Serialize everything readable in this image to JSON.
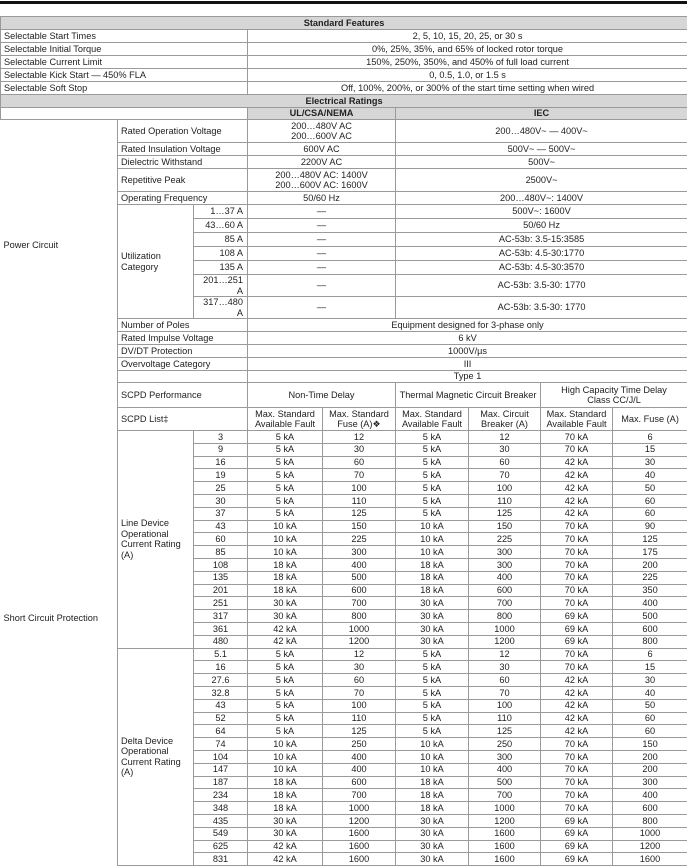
{
  "standard_features": {
    "title": "Standard Features",
    "rows": [
      [
        "Selectable Start Times",
        "2, 5, 10, 15, 20, 25, or 30 s"
      ],
      [
        "Selectable Initial Torque",
        "0%, 25%, 35%, and 65% of locked rotor torque"
      ],
      [
        "Selectable Current Limit",
        "150%, 250%, 350%, and 450% of full load current"
      ],
      [
        "Selectable Kick Start — 450% FLA",
        "0, 0.5, 1.0, or 1.5 s"
      ],
      [
        "Selectable Soft Stop",
        "Off, 100%, 200%, or 300% of the start time setting when wired"
      ]
    ]
  },
  "electrical_ratings": {
    "title": "Electrical Ratings",
    "headers": [
      "UL/CSA/NEMA",
      "IEC"
    ],
    "group": "Power Circuit",
    "rows_before": [
      {
        "label": "Rated Operation Voltage",
        "ul": "200…480V AC\n200…600V AC",
        "iec": "200…480V~ — 400V~"
      },
      {
        "label": "Rated Insulation Voltage",
        "ul": "600V AC",
        "iec": "500V~ — 500V~"
      },
      {
        "label": "Dielectric Withstand",
        "ul": "2200V AC",
        "iec": "500V~"
      },
      {
        "label": "Repetitive Peak",
        "ul": "200…480V AC: 1400V\n200…600V AC: 1600V",
        "iec": "2500V~"
      },
      {
        "label": "Operating Frequency",
        "ul": "50/60 Hz",
        "iec": "200…480V~: 1400V"
      }
    ],
    "utilization": {
      "label": "Utilization Category",
      "rows": [
        {
          "range": "1…37 A",
          "ul": "—",
          "iec": "500V~: 1600V"
        },
        {
          "range": "43…60 A",
          "ul": "—",
          "iec": "50/60 Hz"
        },
        {
          "range": "85 A",
          "ul": "—",
          "iec": "AC-53b: 3.5-15:3585"
        },
        {
          "range": "108 A",
          "ul": "—",
          "iec": "AC-53b: 4.5-30:1770"
        },
        {
          "range": "135 A",
          "ul": "—",
          "iec": "AC-53b: 4.5-30:3570"
        },
        {
          "range": "201…251 A",
          "ul": "—",
          "iec": "AC-53b: 3.5-30: 1770"
        },
        {
          "range": "317…480 A",
          "ul": "—",
          "iec": "AC-53b: 3.5-30: 1770"
        }
      ]
    },
    "rows_after": [
      {
        "label": "Number of Poles",
        "value": "Equipment designed for 3-phase only"
      },
      {
        "label": "Rated Impulse Voltage",
        "value": "6 kV"
      },
      {
        "label": "DV/DT Protection",
        "value": "1000V/µs"
      },
      {
        "label": "Overvoltage Category",
        "value": "III"
      }
    ]
  },
  "short_circuit": {
    "group": "Short Circuit Protection",
    "type": "Type 1",
    "performance_label": "SCPD Performance",
    "performance_groups": [
      "Non-Time Delay",
      "Thermal Magnetic Circuit Breaker",
      "High Capacity Time Delay\nClass CC/J/L"
    ],
    "list_label": "SCPD List‡",
    "columns": [
      "Max. Standard\nAvailable Fault",
      "Max. Standard\nFuse (A)❖",
      "Max. Standard\nAvailable Fault",
      "Max. Circuit\nBreaker (A)",
      "Max. Standard\nAvailable Fault",
      "Max. Fuse (A)"
    ],
    "sections": [
      {
        "label": "Line Device\nOperational\nCurrent Rating\n(A)",
        "rows": [
          [
            3,
            "5 kA",
            12,
            "5 kA",
            12,
            "70 kA",
            6
          ],
          [
            9,
            "5 kA",
            30,
            "5 kA",
            30,
            "70 kA",
            15
          ],
          [
            16,
            "5 kA",
            60,
            "5 kA",
            60,
            "42 kA",
            30
          ],
          [
            19,
            "5 kA",
            70,
            "5 kA",
            70,
            "42 kA",
            40
          ],
          [
            25,
            "5 kA",
            100,
            "5 kA",
            100,
            "42 kA",
            50
          ],
          [
            30,
            "5 kA",
            110,
            "5 kA",
            110,
            "42 kA",
            60
          ],
          [
            37,
            "5 kA",
            125,
            "5 kA",
            125,
            "42 kA",
            60
          ],
          [
            43,
            "10 kA",
            150,
            "10 kA",
            150,
            "70 kA",
            90
          ],
          [
            60,
            "10 kA",
            225,
            "10 kA",
            225,
            "70 kA",
            125
          ],
          [
            85,
            "10 kA",
            300,
            "10 kA",
            300,
            "70 kA",
            175
          ],
          [
            108,
            "18 kA",
            400,
            "18 kA",
            300,
            "70 kA",
            200
          ],
          [
            135,
            "18 kA",
            500,
            "18 kA",
            400,
            "70 kA",
            225
          ],
          [
            201,
            "18 kA",
            600,
            "18 kA",
            600,
            "70 kA",
            350
          ],
          [
            251,
            "30 kA",
            700,
            "30 kA",
            700,
            "70 kA",
            400
          ],
          [
            317,
            "30 kA",
            800,
            "30 kA",
            800,
            "69 kA",
            500
          ],
          [
            361,
            "42 kA",
            1000,
            "30 kA",
            1000,
            "69 kA",
            600
          ],
          [
            480,
            "42 kA",
            1200,
            "30 kA",
            1200,
            "69 kA",
            800
          ]
        ]
      },
      {
        "label": "Delta Device\nOperational\nCurrent Rating\n(A)",
        "rows": [
          [
            5.1,
            "5 kA",
            12,
            "5 kA",
            12,
            "70 kA",
            6
          ],
          [
            16,
            "5 kA",
            30,
            "5 kA",
            30,
            "70 kA",
            15
          ],
          [
            27.6,
            "5 kA",
            60,
            "5 kA",
            60,
            "42 kA",
            30
          ],
          [
            32.8,
            "5 kA",
            70,
            "5 kA",
            70,
            "42 kA",
            40
          ],
          [
            43,
            "5 kA",
            100,
            "5 kA",
            100,
            "42 kA",
            50
          ],
          [
            52,
            "5 kA",
            110,
            "5 kA",
            110,
            "42 kA",
            60
          ],
          [
            64,
            "5 kA",
            125,
            "5 kA",
            125,
            "42 kA",
            60
          ],
          [
            74,
            "10 kA",
            250,
            "10 kA",
            250,
            "70 kA",
            150
          ],
          [
            104,
            "10 kA",
            400,
            "10 kA",
            300,
            "70 kA",
            200
          ],
          [
            147,
            "10 kA",
            400,
            "10 kA",
            400,
            "70 kA",
            200
          ],
          [
            187,
            "18 kA",
            600,
            "18 kA",
            500,
            "70 kA",
            300
          ],
          [
            234,
            "18 kA",
            700,
            "18 kA",
            700,
            "70 kA",
            400
          ],
          [
            348,
            "18 kA",
            1000,
            "18 kA",
            1000,
            "70 kA",
            600
          ],
          [
            435,
            "30 kA",
            1200,
            "30 kA",
            1200,
            "69 kA",
            800
          ],
          [
            549,
            "30 kA",
            1600,
            "30 kA",
            1600,
            "69 kA",
            1000
          ],
          [
            625,
            "42 kA",
            1600,
            "30 kA",
            1600,
            "69 kA",
            1200
          ],
          [
            831,
            "42 kA",
            1600,
            "30 kA",
            1600,
            "69 kA",
            1600
          ]
        ]
      }
    ]
  }
}
